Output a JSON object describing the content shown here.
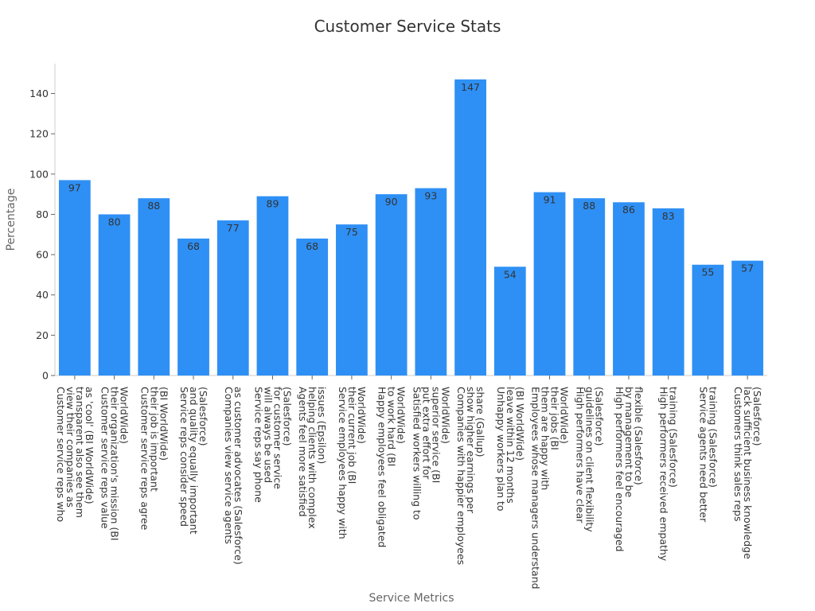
{
  "chart_data": {
    "type": "bar",
    "title": "Customer Service Stats",
    "xlabel": "Service Metrics",
    "ylabel": "Percentage",
    "ylim": [
      0,
      150
    ],
    "yticks": [
      0,
      20,
      40,
      60,
      80,
      100,
      120,
      140
    ],
    "grid": false,
    "legend": "none",
    "bar_color": "#2e90f5",
    "categories": [
      [
        "Customer service reps who",
        "view their companies as",
        "transparent also see them",
        "as 'cool' (BI WorldWide)"
      ],
      [
        "Customer service reps value",
        "their organization's mission (BI",
        "WorldWide)"
      ],
      [
        "Customer service reps agree",
        "their job is important",
        "(BI WorldWide)"
      ],
      [
        "Service reps consider speed",
        "and quality equally important",
        "(Salesforce)"
      ],
      [
        "Companies view service agents",
        "as customer advocates (Salesforce)"
      ],
      [
        "Service reps say phone",
        "will always be used",
        "for customer service",
        "(Salesforce)"
      ],
      [
        "Agents feel more satisfied",
        "helping clients with complex",
        "issues (Epsilon)"
      ],
      [
        "Service employees happy with",
        "their current job (BI",
        "WorldWide)"
      ],
      [
        "Happy employees feel obligated",
        "to work hard (BI",
        "WorldWide)"
      ],
      [
        "Satisfied workers willing to",
        "put extra effort for",
        "superior service (BI",
        "WorldWide)"
      ],
      [
        "Companies with happier employees",
        "show higher earnings per",
        "share (Gallup)"
      ],
      [
        "Unhappy workers plan to",
        "leave within 12 months",
        "(BI WorldWide)"
      ],
      [
        "Employees whose managers understand",
        "them are happy with",
        "their jobs (BI",
        "WorldWide)"
      ],
      [
        "High performers have clear",
        "guidelines on client flexibility",
        "(Salesforce)"
      ],
      [
        "High performers feel encouraged",
        "by management to be",
        "flexible (Salesforce)"
      ],
      [
        "High performers received empathy",
        "training (Salesforce)"
      ],
      [
        "Service agents need better",
        "training (Salesforce)"
      ],
      [
        "Customers think sales reps",
        "lack sufficient business knowledge",
        "(Salesforce)"
      ]
    ],
    "values": [
      97,
      80,
      88,
      68,
      77,
      89,
      68,
      75,
      90,
      93,
      147,
      54,
      91,
      88,
      86,
      83,
      55,
      57
    ]
  }
}
